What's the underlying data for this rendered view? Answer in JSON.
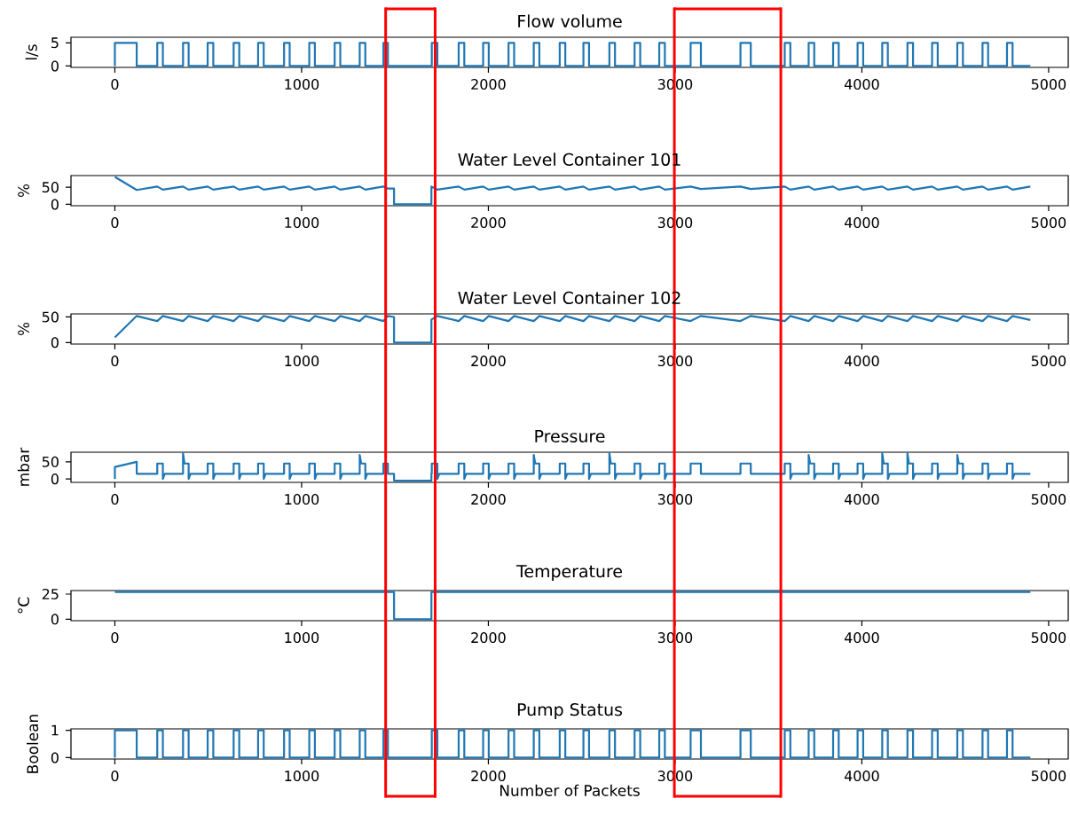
{
  "chart_data": [
    {
      "type": "line",
      "title": "Flow volume",
      "ylabel": "l/s",
      "color": "#1f77b4",
      "xlim": [
        -235,
        5105
      ],
      "ylim": [
        -0.3,
        6.2
      ],
      "xticks": [
        0,
        1000,
        2000,
        3000,
        4000,
        5000
      ],
      "yticks": [
        0,
        5
      ],
      "ref_lines": [
        {
          "axis": "x",
          "value": 1450,
          "color": "#ff0000"
        },
        {
          "axis": "x",
          "value": 1715,
          "color": "#ff0000"
        },
        {
          "axis": "x",
          "value": 2996,
          "color": "#ff0000"
        },
        {
          "axis": "x",
          "value": 3566,
          "color": "#ff0000"
        }
      ],
      "x": [
        0,
        0,
        117,
        117,
        227,
        227,
        257,
        257,
        365,
        365,
        395,
        395,
        497,
        497,
        527,
        527,
        636,
        636,
        666,
        666,
        767,
        767,
        797,
        797,
        906,
        906,
        936,
        936,
        1041,
        1041,
        1071,
        1071,
        1177,
        1177,
        1207,
        1207,
        1311,
        1311,
        1341,
        1341,
        1438,
        1438,
        1462,
        1462,
        1697,
        1697,
        1727,
        1727,
        1841,
        1841,
        1871,
        1871,
        1972,
        1972,
        2002,
        2002,
        2108,
        2108,
        2138,
        2138,
        2243,
        2243,
        2273,
        2273,
        2382,
        2382,
        2412,
        2412,
        2509,
        2509,
        2539,
        2539,
        2648,
        2648,
        2678,
        2678,
        2783,
        2783,
        2813,
        2813,
        2915,
        2915,
        2945,
        2945,
        3083,
        3083,
        3138,
        3138,
        3350,
        3350,
        3405,
        3405,
        3587,
        3587,
        3617,
        3617,
        3715,
        3715,
        3745,
        3745,
        3846,
        3846,
        3876,
        3876,
        3977,
        3977,
        4007,
        4007,
        4109,
        4109,
        4139,
        4139,
        4244,
        4244,
        4274,
        4274,
        4376,
        4376,
        4406,
        4406,
        4511,
        4511,
        4541,
        4541,
        4646,
        4646,
        4676,
        4676,
        4777,
        4777,
        4807,
        4807,
        4902
      ],
      "values": [
        0,
        5,
        5,
        0,
        0,
        5,
        5,
        0,
        0,
        5,
        5,
        0,
        0,
        5,
        5,
        0,
        0,
        5,
        5,
        0,
        0,
        5,
        5,
        0,
        0,
        5,
        5,
        0,
        0,
        5,
        5,
        0,
        0,
        5,
        5,
        0,
        0,
        5,
        5,
        0,
        0,
        5,
        5,
        0,
        0,
        5,
        5,
        0,
        0,
        5,
        5,
        0,
        0,
        5,
        5,
        0,
        0,
        5,
        5,
        0,
        0,
        5,
        5,
        0,
        0,
        5,
        5,
        0,
        0,
        5,
        5,
        0,
        0,
        5,
        5,
        0,
        0,
        5,
        5,
        0,
        0,
        5,
        5,
        0,
        0,
        5,
        5,
        0,
        0,
        5,
        5,
        0,
        0,
        5,
        5,
        0,
        0,
        5,
        5,
        0,
        0,
        5,
        5,
        0,
        0,
        5,
        5,
        0,
        0,
        5,
        5,
        0,
        0,
        5,
        5,
        0,
        0,
        5,
        5,
        0,
        0,
        5,
        5,
        0,
        0,
        5,
        5,
        0,
        0,
        5,
        5,
        0,
        0
      ]
    },
    {
      "type": "line",
      "title": "Water Level Container 101",
      "ylabel": "%",
      "color": "#1f77b4",
      "xlim": [
        -235,
        5105
      ],
      "ylim": [
        -4,
        84
      ],
      "xticks": [
        0,
        1000,
        2000,
        3000,
        4000,
        5000
      ],
      "yticks": [
        0,
        50
      ],
      "ref_lines": [
        {
          "axis": "x",
          "value": 1450,
          "color": "#ff0000"
        },
        {
          "axis": "x",
          "value": 1715,
          "color": "#ff0000"
        },
        {
          "axis": "x",
          "value": 2996,
          "color": "#ff0000"
        },
        {
          "axis": "x",
          "value": 3566,
          "color": "#ff0000"
        }
      ],
      "x": [
        0,
        117,
        227,
        257,
        365,
        395,
        497,
        527,
        636,
        666,
        767,
        797,
        906,
        936,
        1041,
        1071,
        1177,
        1207,
        1311,
        1341,
        1438,
        1462,
        1495,
        1495,
        1695,
        1695,
        1727,
        1841,
        1871,
        1972,
        2002,
        2108,
        2138,
        2243,
        2273,
        2382,
        2412,
        2509,
        2539,
        2648,
        2678,
        2783,
        2813,
        2915,
        2945,
        3083,
        3138,
        3350,
        3405,
        3587,
        3617,
        3715,
        3745,
        3846,
        3876,
        3977,
        4007,
        4109,
        4139,
        4244,
        4274,
        4376,
        4406,
        4511,
        4541,
        4646,
        4676,
        4777,
        4807,
        4902
      ],
      "values": [
        80,
        42,
        52,
        43,
        52,
        43,
        52,
        43,
        52,
        43,
        52,
        43,
        52,
        43,
        52,
        43,
        52,
        43,
        52,
        43,
        52,
        46,
        46,
        0,
        0,
        52,
        43,
        52,
        43,
        52,
        43,
        52,
        43,
        52,
        43,
        52,
        43,
        52,
        43,
        52,
        43,
        52,
        43,
        52,
        43,
        52,
        45,
        52,
        45,
        52,
        43,
        52,
        43,
        52,
        43,
        52,
        43,
        52,
        43,
        52,
        43,
        52,
        43,
        52,
        43,
        52,
        43,
        52,
        43,
        52
      ]
    },
    {
      "type": "line",
      "title": "Water Level Container 102",
      "ylabel": "%",
      "color": "#1f77b4",
      "xlim": [
        -235,
        5105
      ],
      "ylim": [
        -3,
        56
      ],
      "xticks": [
        0,
        1000,
        2000,
        3000,
        4000,
        5000
      ],
      "yticks": [
        0,
        50
      ],
      "ref_lines": [
        {
          "axis": "x",
          "value": 1450,
          "color": "#ff0000"
        },
        {
          "axis": "x",
          "value": 1715,
          "color": "#ff0000"
        },
        {
          "axis": "x",
          "value": 2996,
          "color": "#ff0000"
        },
        {
          "axis": "x",
          "value": 3566,
          "color": "#ff0000"
        }
      ],
      "x": [
        0,
        117,
        227,
        257,
        365,
        395,
        497,
        527,
        636,
        666,
        767,
        797,
        906,
        936,
        1041,
        1071,
        1177,
        1207,
        1311,
        1341,
        1438,
        1462,
        1495,
        1495,
        1695,
        1695,
        1727,
        1841,
        1871,
        1972,
        2002,
        2108,
        2138,
        2243,
        2273,
        2382,
        2412,
        2509,
        2539,
        2648,
        2678,
        2783,
        2813,
        2915,
        2945,
        3083,
        3138,
        3350,
        3405,
        3587,
        3617,
        3715,
        3745,
        3846,
        3876,
        3977,
        4007,
        4109,
        4139,
        4244,
        4274,
        4376,
        4406,
        4511,
        4541,
        4646,
        4676,
        4777,
        4807,
        4902
      ],
      "values": [
        10,
        52,
        42,
        52,
        42,
        52,
        42,
        52,
        42,
        52,
        42,
        52,
        42,
        52,
        42,
        52,
        42,
        52,
        42,
        52,
        42,
        52,
        50,
        0,
        0,
        45,
        52,
        42,
        52,
        42,
        52,
        42,
        52,
        42,
        52,
        42,
        52,
        42,
        52,
        42,
        52,
        42,
        52,
        42,
        52,
        42,
        52,
        42,
        52,
        42,
        52,
        42,
        52,
        42,
        52,
        42,
        52,
        42,
        52,
        42,
        52,
        42,
        52,
        42,
        52,
        42,
        52,
        42,
        52,
        44
      ]
    },
    {
      "type": "line",
      "title": "Pressure",
      "ylabel": "mbar",
      "color": "#1f77b4",
      "xlim": [
        -235,
        5105
      ],
      "ylim": [
        -10,
        78
      ],
      "xticks": [
        0,
        1000,
        2000,
        3000,
        4000,
        5000
      ],
      "yticks": [
        0,
        50
      ],
      "ref_lines": [
        {
          "axis": "x",
          "value": 1450,
          "color": "#ff0000"
        },
        {
          "axis": "x",
          "value": 1715,
          "color": "#ff0000"
        },
        {
          "axis": "x",
          "value": 2996,
          "color": "#ff0000"
        },
        {
          "axis": "x",
          "value": 3566,
          "color": "#ff0000"
        }
      ],
      "x": [
        0,
        0,
        117,
        117,
        227,
        227,
        257,
        257,
        267,
        365,
        365,
        373,
        395,
        395,
        405,
        497,
        497,
        527,
        527,
        537,
        636,
        636,
        666,
        666,
        676,
        767,
        767,
        797,
        797,
        807,
        906,
        906,
        936,
        936,
        946,
        1041,
        1041,
        1071,
        1071,
        1081,
        1177,
        1177,
        1207,
        1207,
        1217,
        1311,
        1311,
        1319,
        1341,
        1341,
        1351,
        1438,
        1438,
        1462,
        1462,
        1495,
        1495,
        1695,
        1695,
        1697,
        1697,
        1727,
        1727,
        1737,
        1841,
        1841,
        1871,
        1871,
        1881,
        1972,
        1972,
        2002,
        2002,
        2012,
        2108,
        2108,
        2138,
        2138,
        2148,
        2243,
        2243,
        2251,
        2273,
        2273,
        2283,
        2382,
        2382,
        2412,
        2412,
        2422,
        2509,
        2509,
        2539,
        2539,
        2549,
        2648,
        2648,
        2656,
        2678,
        2678,
        2688,
        2783,
        2783,
        2813,
        2813,
        2823,
        2915,
        2915,
        2945,
        2945,
        2955,
        3083,
        3083,
        3138,
        3138,
        3350,
        3350,
        3405,
        3405,
        3587,
        3587,
        3617,
        3617,
        3627,
        3715,
        3715,
        3723,
        3745,
        3745,
        3755,
        3846,
        3846,
        3876,
        3876,
        3886,
        3977,
        3977,
        4007,
        4007,
        4017,
        4109,
        4109,
        4117,
        4139,
        4139,
        4149,
        4244,
        4244,
        4252,
        4274,
        4274,
        4284,
        4376,
        4376,
        4406,
        4406,
        4416,
        4511,
        4511,
        4519,
        4541,
        4541,
        4551,
        4646,
        4646,
        4676,
        4676,
        4686,
        4777,
        4777,
        4807,
        4807,
        4817,
        4902
      ],
      "values": [
        0,
        35,
        50,
        15,
        15,
        45,
        45,
        0,
        15,
        15,
        75,
        45,
        45,
        0,
        15,
        15,
        45,
        45,
        0,
        15,
        15,
        45,
        45,
        0,
        15,
        15,
        45,
        45,
        0,
        15,
        15,
        45,
        45,
        0,
        15,
        15,
        45,
        45,
        0,
        15,
        15,
        45,
        45,
        0,
        15,
        15,
        70,
        45,
        45,
        0,
        15,
        15,
        45,
        45,
        15,
        15,
        -5,
        -5,
        15,
        15,
        45,
        45,
        0,
        15,
        15,
        45,
        45,
        0,
        15,
        15,
        45,
        45,
        0,
        15,
        15,
        45,
        45,
        0,
        15,
        15,
        70,
        45,
        45,
        0,
        15,
        15,
        45,
        45,
        0,
        15,
        15,
        45,
        45,
        0,
        15,
        15,
        75,
        45,
        45,
        0,
        15,
        15,
        45,
        45,
        0,
        15,
        15,
        45,
        45,
        0,
        15,
        15,
        45,
        45,
        15,
        15,
        45,
        45,
        15,
        15,
        45,
        45,
        0,
        15,
        15,
        70,
        45,
        45,
        0,
        15,
        15,
        45,
        45,
        0,
        15,
        15,
        45,
        45,
        0,
        15,
        15,
        75,
        45,
        45,
        0,
        15,
        15,
        75,
        45,
        45,
        0,
        15,
        15,
        45,
        45,
        0,
        15,
        15,
        70,
        45,
        45,
        0,
        15,
        15,
        45,
        45,
        0,
        15,
        15,
        45,
        45,
        0,
        15,
        15
      ]
    },
    {
      "type": "line",
      "title": "Temperature",
      "ylabel": "°C",
      "color": "#1f77b4",
      "xlim": [
        -235,
        5105
      ],
      "ylim": [
        -1.5,
        28.5
      ],
      "xticks": [
        0,
        1000,
        2000,
        3000,
        4000,
        5000
      ],
      "yticks": [
        0,
        25
      ],
      "ref_lines": [
        {
          "axis": "x",
          "value": 1450,
          "color": "#ff0000"
        },
        {
          "axis": "x",
          "value": 1715,
          "color": "#ff0000"
        },
        {
          "axis": "x",
          "value": 2996,
          "color": "#ff0000"
        },
        {
          "axis": "x",
          "value": 3566,
          "color": "#ff0000"
        }
      ],
      "x": [
        0,
        1495,
        1495,
        1695,
        1695,
        4902
      ],
      "values": [
        27,
        27,
        0,
        0,
        27,
        27
      ]
    },
    {
      "type": "line",
      "title": "Pump Status",
      "ylabel": "Boolean",
      "xlabel": "Number of Packets",
      "color": "#1f77b4",
      "xlim": [
        -235,
        5105
      ],
      "ylim": [
        -0.05,
        1.05
      ],
      "xticks": [
        0,
        1000,
        2000,
        3000,
        4000,
        5000
      ],
      "yticks": [
        0,
        1
      ],
      "ref_lines": [
        {
          "axis": "x",
          "value": 1450,
          "color": "#ff0000"
        },
        {
          "axis": "x",
          "value": 1715,
          "color": "#ff0000"
        },
        {
          "axis": "x",
          "value": 2996,
          "color": "#ff0000"
        },
        {
          "axis": "x",
          "value": 3566,
          "color": "#ff0000"
        }
      ],
      "x": [
        0,
        0,
        117,
        117,
        227,
        227,
        257,
        257,
        365,
        365,
        395,
        395,
        497,
        497,
        527,
        527,
        636,
        636,
        666,
        666,
        767,
        767,
        797,
        797,
        906,
        906,
        936,
        936,
        1041,
        1041,
        1071,
        1071,
        1177,
        1177,
        1207,
        1207,
        1311,
        1311,
        1341,
        1341,
        1438,
        1438,
        1462,
        1462,
        1697,
        1697,
        1727,
        1727,
        1841,
        1841,
        1871,
        1871,
        1972,
        1972,
        2002,
        2002,
        2108,
        2108,
        2138,
        2138,
        2243,
        2243,
        2273,
        2273,
        2382,
        2382,
        2412,
        2412,
        2509,
        2509,
        2539,
        2539,
        2648,
        2648,
        2678,
        2678,
        2783,
        2783,
        2813,
        2813,
        2915,
        2915,
        2945,
        2945,
        3083,
        3083,
        3138,
        3138,
        3350,
        3350,
        3405,
        3405,
        3587,
        3587,
        3617,
        3617,
        3715,
        3715,
        3745,
        3745,
        3846,
        3846,
        3876,
        3876,
        3977,
        3977,
        4007,
        4007,
        4109,
        4109,
        4139,
        4139,
        4244,
        4244,
        4274,
        4274,
        4376,
        4376,
        4406,
        4406,
        4511,
        4511,
        4541,
        4541,
        4646,
        4646,
        4676,
        4676,
        4777,
        4777,
        4807,
        4807,
        4902
      ],
      "values": [
        0,
        1,
        1,
        0,
        0,
        1,
        1,
        0,
        0,
        1,
        1,
        0,
        0,
        1,
        1,
        0,
        0,
        1,
        1,
        0,
        0,
        1,
        1,
        0,
        0,
        1,
        1,
        0,
        0,
        1,
        1,
        0,
        0,
        1,
        1,
        0,
        0,
        1,
        1,
        0,
        0,
        1,
        1,
        0,
        0,
        1,
        1,
        0,
        0,
        1,
        1,
        0,
        0,
        1,
        1,
        0,
        0,
        1,
        1,
        0,
        0,
        1,
        1,
        0,
        0,
        1,
        1,
        0,
        0,
        1,
        1,
        0,
        0,
        1,
        1,
        0,
        0,
        1,
        1,
        0,
        0,
        1,
        1,
        0,
        0,
        1,
        1,
        0,
        0,
        1,
        1,
        0,
        0,
        1,
        1,
        0,
        0,
        1,
        1,
        0,
        0,
        1,
        1,
        0,
        0,
        1,
        1,
        0,
        0,
        1,
        1,
        0,
        0,
        1,
        1,
        0,
        0,
        1,
        1,
        0,
        0,
        1,
        1,
        0,
        0,
        1,
        1,
        0,
        0,
        1,
        1,
        0,
        0
      ]
    }
  ]
}
